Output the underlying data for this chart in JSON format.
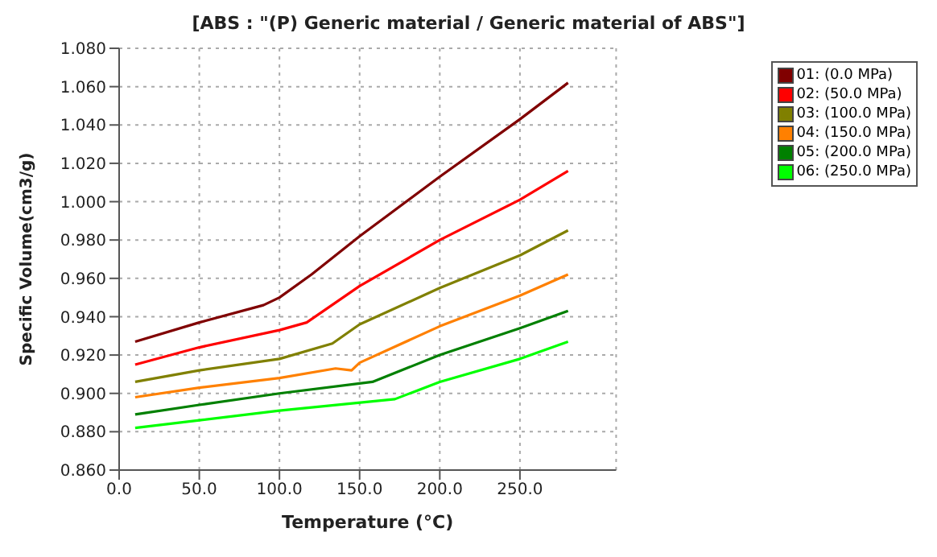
{
  "chart_data": {
    "type": "line",
    "title": "[ABS : \"(P)  Generic material / Generic material of ABS\"]",
    "xlabel": "Temperature (°C)",
    "ylabel": "Specific Volume(cm3/g)",
    "series": [
      {
        "name": "01: (0.0 MPa)",
        "color": "#800000",
        "x": [
          10,
          50,
          90,
          100,
          120,
          150,
          200,
          250,
          280
        ],
        "values": [
          0.927,
          0.937,
          0.946,
          0.95,
          0.962,
          0.982,
          1.013,
          1.043,
          1.062
        ]
      },
      {
        "name": "02: (50.0 MPa)",
        "color": "#ff0000",
        "x": [
          10,
          50,
          100,
          117,
          150,
          200,
          250,
          280
        ],
        "values": [
          0.915,
          0.924,
          0.933,
          0.937,
          0.956,
          0.98,
          1.001,
          1.016
        ]
      },
      {
        "name": "03: (100.0 MPa)",
        "color": "#808000",
        "x": [
          10,
          50,
          100,
          133,
          150,
          200,
          250,
          280
        ],
        "values": [
          0.906,
          0.912,
          0.918,
          0.926,
          0.936,
          0.955,
          0.972,
          0.985
        ]
      },
      {
        "name": "04: (150.0 MPa)",
        "color": "#ff8000",
        "x": [
          10,
          50,
          100,
          135,
          145,
          150,
          200,
          250,
          280
        ],
        "values": [
          0.898,
          0.903,
          0.908,
          0.913,
          0.912,
          0.916,
          0.935,
          0.951,
          0.962
        ]
      },
      {
        "name": "05: (200.0 MPa)",
        "color": "#008000",
        "x": [
          10,
          50,
          100,
          158,
          200,
          250,
          280
        ],
        "values": [
          0.889,
          0.894,
          0.9,
          0.906,
          0.92,
          0.934,
          0.943
        ]
      },
      {
        "name": "06: (250.0 MPa)",
        "color": "#00ff00",
        "x": [
          10,
          50,
          100,
          172,
          200,
          250,
          280
        ],
        "values": [
          0.882,
          0.886,
          0.891,
          0.897,
          0.906,
          0.918,
          0.927
        ]
      }
    ],
    "xlim": [
      0,
      310
    ],
    "xticks": [
      {
        "value": 0,
        "label": "0.0"
      },
      {
        "value": 50,
        "label": "50.0"
      },
      {
        "value": 100,
        "label": "100.0"
      },
      {
        "value": 150,
        "label": "150.0"
      },
      {
        "value": 200,
        "label": "200.0"
      },
      {
        "value": 250,
        "label": "250.0"
      }
    ],
    "ylim": [
      0.86,
      1.08
    ],
    "yticks": [
      {
        "value": 0.86,
        "label": "0.860"
      },
      {
        "value": 0.88,
        "label": "0.880"
      },
      {
        "value": 0.9,
        "label": "0.900"
      },
      {
        "value": 0.92,
        "label": "0.920"
      },
      {
        "value": 0.94,
        "label": "0.940"
      },
      {
        "value": 0.96,
        "label": "0.960"
      },
      {
        "value": 0.98,
        "label": "0.980"
      },
      {
        "value": 1.0,
        "label": "1.000"
      },
      {
        "value": 1.02,
        "label": "1.020"
      },
      {
        "value": 1.04,
        "label": "1.040"
      },
      {
        "value": 1.06,
        "label": "1.060"
      },
      {
        "value": 1.08,
        "label": "1.080"
      }
    ],
    "grid": true,
    "legend": "top right",
    "marker": "none",
    "line_style": "solid"
  }
}
